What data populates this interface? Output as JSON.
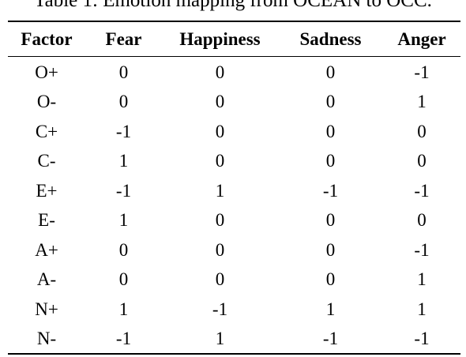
{
  "caption": "Table 1: Emotion mapping from OCEAN to OCC.",
  "table": {
    "headers": [
      "Factor",
      "Fear",
      "Happiness",
      "Sadness",
      "Anger"
    ],
    "rows": [
      [
        "O+",
        "0",
        "0",
        "0",
        "-1"
      ],
      [
        "O-",
        "0",
        "0",
        "0",
        "1"
      ],
      [
        "C+",
        "-1",
        "0",
        "0",
        "0"
      ],
      [
        "C-",
        "1",
        "0",
        "0",
        "0"
      ],
      [
        "E+",
        "-1",
        "1",
        "-1",
        "-1"
      ],
      [
        "E-",
        "1",
        "0",
        "0",
        "0"
      ],
      [
        "A+",
        "0",
        "0",
        "0",
        "-1"
      ],
      [
        "A-",
        "0",
        "0",
        "0",
        "1"
      ],
      [
        "N+",
        "1",
        "-1",
        "1",
        "1"
      ],
      [
        "N-",
        "-1",
        "1",
        "-1",
        "-1"
      ]
    ]
  }
}
